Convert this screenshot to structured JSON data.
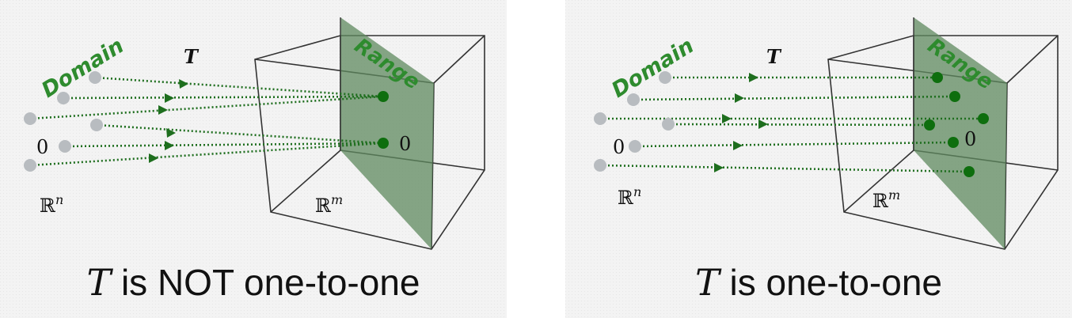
{
  "panels": [
    {
      "domain_label": "Domain",
      "range_label": "Range",
      "map_label": "T",
      "domain_space": "ℝ",
      "domain_exp": "n",
      "codomain_space": "ℝ",
      "codomain_exp": "m",
      "zero_domain": "0",
      "zero_range": "0",
      "caption_var": "T",
      "caption_text": " is NOT one-to-one"
    },
    {
      "domain_label": "Domain",
      "range_label": "Range",
      "map_label": "T",
      "domain_space": "ℝ",
      "domain_exp": "n",
      "codomain_space": "ℝ",
      "codomain_exp": "m",
      "zero_domain": "0",
      "zero_range": "0",
      "caption_var": "T",
      "caption_text": " is one-to-one"
    }
  ],
  "colors": {
    "arrow": "#1e6e1e",
    "range_plane": "#5f8a5f",
    "domain_point": "#b8bcc0",
    "range_point": "#0e6e0e",
    "box_line": "#333333",
    "label_green": "#2e8b2e"
  },
  "icons": [
    "domain-point",
    "range-point",
    "arrow-head"
  ]
}
